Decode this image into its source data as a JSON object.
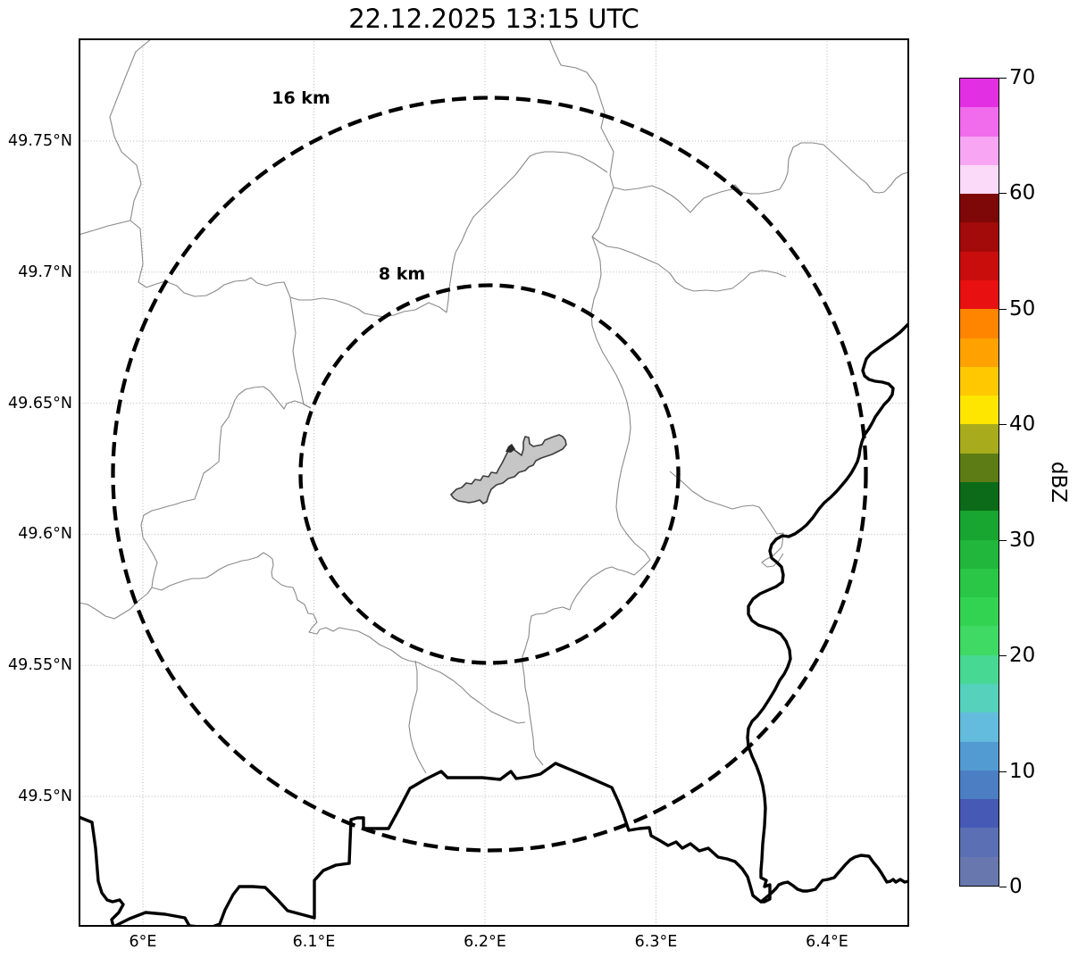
{
  "title": "22.12.2025 13:15 UTC",
  "map": {
    "x_tick_labels": [
      "6°E",
      "6.1°E",
      "6.2°E",
      "6.3°E",
      "6.4°E"
    ],
    "x_tick_lons": [
      6.0,
      6.1,
      6.2,
      6.3,
      6.4
    ],
    "y_tick_labels": [
      "49.75°N",
      "49.7°N",
      "49.65°N",
      "49.6°N",
      "49.55°N",
      "49.5°N"
    ],
    "y_tick_lats": [
      49.75,
      49.7,
      49.65,
      49.6,
      49.55,
      49.5
    ],
    "ring_labels": {
      "outer": "16 km",
      "inner": "8 km"
    },
    "ring_radii_km": [
      16,
      8
    ]
  },
  "colorbar": {
    "label": "dBZ",
    "value_min": 0,
    "value_max": 70,
    "segment_step_dbz": 2.5,
    "tick_values": [
      0,
      10,
      20,
      30,
      40,
      50,
      60,
      70
    ],
    "tick_labels": [
      "0",
      "10",
      "20",
      "30",
      "40",
      "50",
      "60",
      "70"
    ],
    "colors_bottom_to_top": [
      "#6878AE",
      "#5B6FB4",
      "#4659B5",
      "#4C7EC3",
      "#529BD2",
      "#63BBDD",
      "#55D1BC",
      "#47D893",
      "#3EDA64",
      "#33D352",
      "#2AC747",
      "#20B73C",
      "#18A530",
      "#0B6B19",
      "#5E7C16",
      "#A8AC1C",
      "#FFE600",
      "#FFC800",
      "#FFA100",
      "#FF8400",
      "#E81010",
      "#C90D0D",
      "#A30A0A",
      "#7E0707",
      "#FBD9F8",
      "#F8A5F4",
      "#F06CEC",
      "#E32FE3"
    ]
  }
}
